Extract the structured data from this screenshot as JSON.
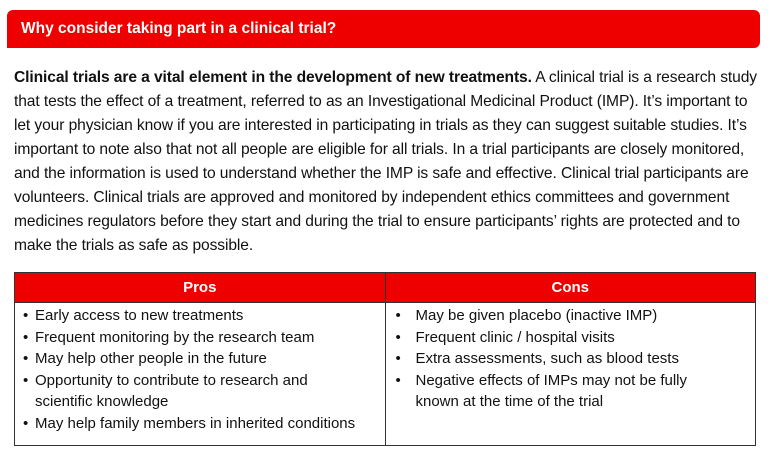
{
  "header": {
    "title": "Why consider taking part in a clinical trial?",
    "color": "#ee0000"
  },
  "intro": {
    "lead": "Clinical trials are a vital element in the development of new treatments.",
    "body": " A clinical trial is a research study that tests the effect of a treatment, referred to as an Investigational Medicinal Product (IMP). It’s important to let your physician know if you are interested in participating in trials as they can suggest suitable studies. It’s important to note also that not all people are eligible for all trials. In a trial participants are closely monitored, and the information is used to understand whether the IMP is safe and effective. Clinical trial participants are volunteers. Clinical trials are approved and monitored by independent ethics committees and government medicines regulators before they start and during the trial to ensure participants’ rights are protected and to make the trials as safe as possible."
  },
  "table": {
    "headers": [
      "Pros",
      "Cons"
    ],
    "pros": [
      "Early access to new treatments",
      "Frequent monitoring by the research team",
      "May help other people in the future",
      "Opportunity to contribute to research and scientific knowledge",
      "May help family members in inherited conditions"
    ],
    "cons": [
      "May be given placebo (inactive IMP)",
      "Frequent clinic / hospital visits",
      "Extra assessments, such as blood tests",
      "Negative effects of IMPs may not be fully known at the time of the trial"
    ]
  }
}
